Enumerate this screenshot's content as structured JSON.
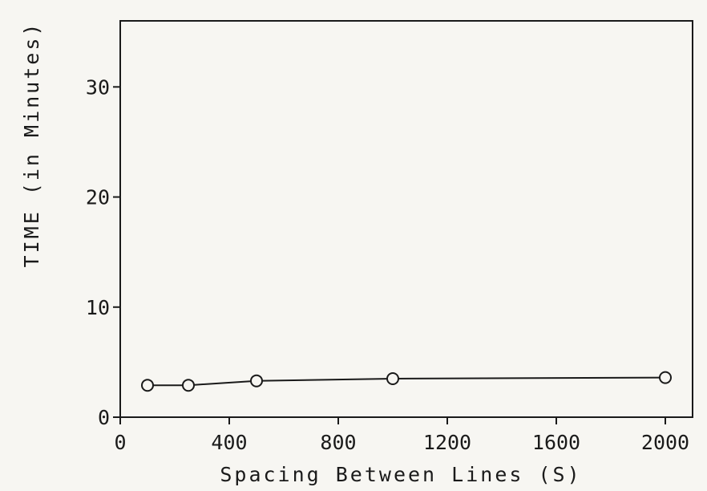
{
  "chart_data": {
    "type": "line",
    "xlabel": "Spacing Between Lines (S)",
    "ylabel": "TIME (in Minutes)",
    "xlim": [
      0,
      2100
    ],
    "ylim": [
      0,
      36
    ],
    "x_ticks": [
      0,
      400,
      800,
      1200,
      1600,
      2000
    ],
    "y_ticks": [
      0,
      10,
      20,
      30
    ],
    "x_tick_labels": [
      "0",
      "400",
      "800",
      "1200",
      "1600",
      "2000"
    ],
    "y_tick_labels": [
      "0",
      "10",
      "20",
      "30"
    ],
    "grid": false,
    "series": [
      {
        "x": [
          100,
          250,
          500,
          1000,
          2000
        ],
        "y": [
          2.9,
          2.9,
          3.3,
          3.5,
          3.6
        ],
        "marker": "open-circle",
        "color": "#1a1a1a"
      }
    ]
  }
}
